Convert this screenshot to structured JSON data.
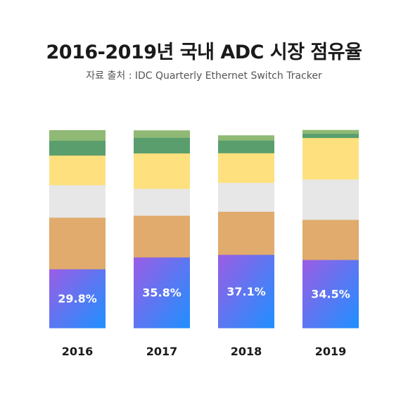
{
  "title": "2016-2019년 국내 ADC 시장 점유율",
  "subtitle": "자료 출처 : IDC Quarterly Ethernet Switch Tracker",
  "colors": {
    "top_light_green": "#8fb974",
    "dark_green": "#5a9e6e",
    "yellow": "#fee17e",
    "light_gray": "#e7e7e7",
    "tan": "#e0ab6c",
    "gradient_start": "#9b5de5",
    "gradient_end": "#1e90ff",
    "label_text": "#ffffff",
    "axis_text": "#1a1a1a"
  },
  "chart_data": {
    "type": "bar",
    "stacked": true,
    "categories": [
      "2016",
      "2017",
      "2018",
      "2019"
    ],
    "ylim": [
      0,
      100
    ],
    "series": [
      {
        "values": [
          29.8,
          35.8,
          37.1,
          34.5
        ],
        "labels": [
          "29.8%",
          "35.8%",
          "37.1%",
          "34.5%"
        ],
        "color": "gradient"
      },
      {
        "values": [
          26.1,
          21.1,
          21.8,
          20.3
        ],
        "color": "#e0ab6c"
      },
      {
        "values": [
          16.4,
          13.6,
          14.6,
          20.4
        ],
        "color": "#e7e7e7"
      },
      {
        "values": [
          15.0,
          17.9,
          15.0,
          21.0
        ],
        "color": "#fee17e"
      },
      {
        "values": [
          7.5,
          7.9,
          6.4,
          2.1
        ],
        "color": "#5a9e6e"
      },
      {
        "values": [
          5.2,
          3.6,
          2.5,
          1.8
        ],
        "color": "#8fb974"
      }
    ]
  }
}
